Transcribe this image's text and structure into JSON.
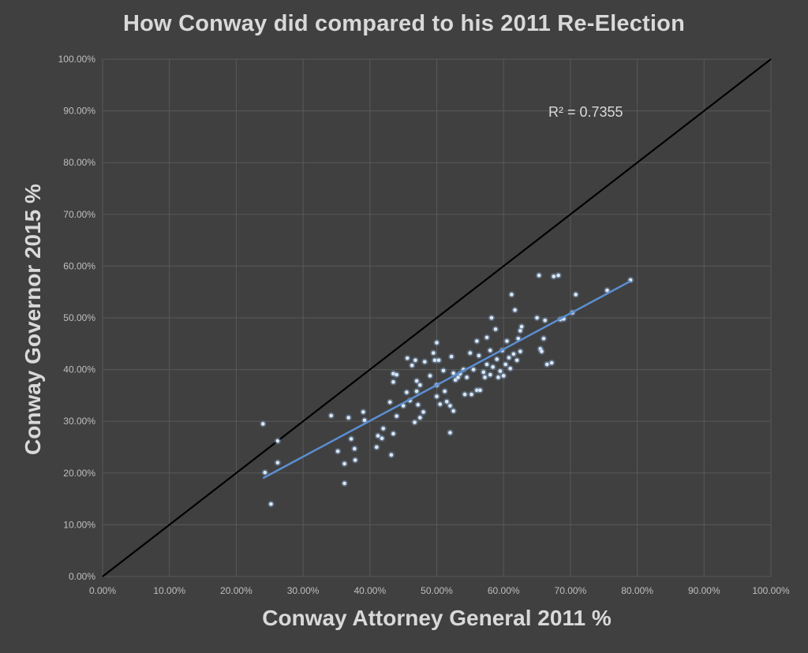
{
  "chart_data": {
    "type": "scatter",
    "title": "How Conway did compared to his 2011 Re-Election",
    "xlabel": "Conway Attorney General 2011 %",
    "ylabel": "Conway Governor 2015 %",
    "xlim": [
      0,
      1
    ],
    "ylim": [
      0,
      1
    ],
    "x_ticks": [
      "0.00%",
      "10.00%",
      "20.00%",
      "30.00%",
      "40.00%",
      "50.00%",
      "60.00%",
      "70.00%",
      "80.00%",
      "90.00%",
      "100.00%"
    ],
    "y_ticks": [
      "0.00%",
      "10.00%",
      "20.00%",
      "30.00%",
      "40.00%",
      "50.00%",
      "60.00%",
      "70.00%",
      "80.00%",
      "90.00%",
      "100.00%"
    ],
    "grid": true,
    "annotation": "R² = 0.7355",
    "reference_line": {
      "from": [
        0,
        0
      ],
      "to": [
        1,
        1
      ],
      "color": "#000000"
    },
    "trendline": {
      "from": [
        0.24,
        0.19
      ],
      "to": [
        0.79,
        0.571
      ],
      "color": "#5b8fd1"
    },
    "point_color": "#8db4e2",
    "points": [
      [
        0.24,
        0.295
      ],
      [
        0.243,
        0.201
      ],
      [
        0.252,
        0.14
      ],
      [
        0.262,
        0.262
      ],
      [
        0.262,
        0.22
      ],
      [
        0.342,
        0.311
      ],
      [
        0.352,
        0.242
      ],
      [
        0.362,
        0.218
      ],
      [
        0.362,
        0.18
      ],
      [
        0.368,
        0.307
      ],
      [
        0.372,
        0.266
      ],
      [
        0.377,
        0.247
      ],
      [
        0.378,
        0.225
      ],
      [
        0.39,
        0.318
      ],
      [
        0.392,
        0.302
      ],
      [
        0.41,
        0.25
      ],
      [
        0.412,
        0.272
      ],
      [
        0.418,
        0.267
      ],
      [
        0.42,
        0.286
      ],
      [
        0.43,
        0.337
      ],
      [
        0.432,
        0.235
      ],
      [
        0.435,
        0.276
      ],
      [
        0.435,
        0.376
      ],
      [
        0.435,
        0.392
      ],
      [
        0.44,
        0.39
      ],
      [
        0.44,
        0.31
      ],
      [
        0.45,
        0.33
      ],
      [
        0.455,
        0.356
      ],
      [
        0.456,
        0.422
      ],
      [
        0.46,
        0.34
      ],
      [
        0.463,
        0.408
      ],
      [
        0.467,
        0.298
      ],
      [
        0.468,
        0.418
      ],
      [
        0.47,
        0.378
      ],
      [
        0.47,
        0.358
      ],
      [
        0.472,
        0.332
      ],
      [
        0.475,
        0.37
      ],
      [
        0.475,
        0.307
      ],
      [
        0.48,
        0.318
      ],
      [
        0.482,
        0.415
      ],
      [
        0.49,
        0.388
      ],
      [
        0.495,
        0.432
      ],
      [
        0.497,
        0.418
      ],
      [
        0.5,
        0.452
      ],
      [
        0.5,
        0.37
      ],
      [
        0.5,
        0.348
      ],
      [
        0.503,
        0.418
      ],
      [
        0.505,
        0.333
      ],
      [
        0.51,
        0.398
      ],
      [
        0.512,
        0.358
      ],
      [
        0.515,
        0.338
      ],
      [
        0.52,
        0.33
      ],
      [
        0.52,
        0.278
      ],
      [
        0.522,
        0.425
      ],
      [
        0.525,
        0.32
      ],
      [
        0.525,
        0.393
      ],
      [
        0.528,
        0.38
      ],
      [
        0.532,
        0.385
      ],
      [
        0.535,
        0.392
      ],
      [
        0.54,
        0.4
      ],
      [
        0.542,
        0.352
      ],
      [
        0.545,
        0.385
      ],
      [
        0.55,
        0.432
      ],
      [
        0.552,
        0.352
      ],
      [
        0.555,
        0.4
      ],
      [
        0.56,
        0.455
      ],
      [
        0.56,
        0.36
      ],
      [
        0.563,
        0.427
      ],
      [
        0.565,
        0.36
      ],
      [
        0.57,
        0.395
      ],
      [
        0.572,
        0.385
      ],
      [
        0.575,
        0.41
      ],
      [
        0.575,
        0.462
      ],
      [
        0.58,
        0.39
      ],
      [
        0.58,
        0.437
      ],
      [
        0.582,
        0.5
      ],
      [
        0.584,
        0.405
      ],
      [
        0.588,
        0.478
      ],
      [
        0.59,
        0.42
      ],
      [
        0.592,
        0.385
      ],
      [
        0.595,
        0.397
      ],
      [
        0.598,
        0.437
      ],
      [
        0.6,
        0.388
      ],
      [
        0.603,
        0.41
      ],
      [
        0.605,
        0.455
      ],
      [
        0.608,
        0.423
      ],
      [
        0.61,
        0.402
      ],
      [
        0.612,
        0.545
      ],
      [
        0.615,
        0.43
      ],
      [
        0.617,
        0.515
      ],
      [
        0.62,
        0.418
      ],
      [
        0.622,
        0.46
      ],
      [
        0.625,
        0.435
      ],
      [
        0.625,
        0.475
      ],
      [
        0.627,
        0.483
      ],
      [
        0.65,
        0.5
      ],
      [
        0.653,
        0.582
      ],
      [
        0.655,
        0.44
      ],
      [
        0.657,
        0.435
      ],
      [
        0.66,
        0.46
      ],
      [
        0.662,
        0.495
      ],
      [
        0.665,
        0.41
      ],
      [
        0.672,
        0.413
      ],
      [
        0.675,
        0.58
      ],
      [
        0.682,
        0.582
      ],
      [
        0.685,
        0.497
      ],
      [
        0.69,
        0.498
      ],
      [
        0.703,
        0.51
      ],
      [
        0.708,
        0.545
      ],
      [
        0.755,
        0.553
      ],
      [
        0.79,
        0.573
      ]
    ]
  }
}
